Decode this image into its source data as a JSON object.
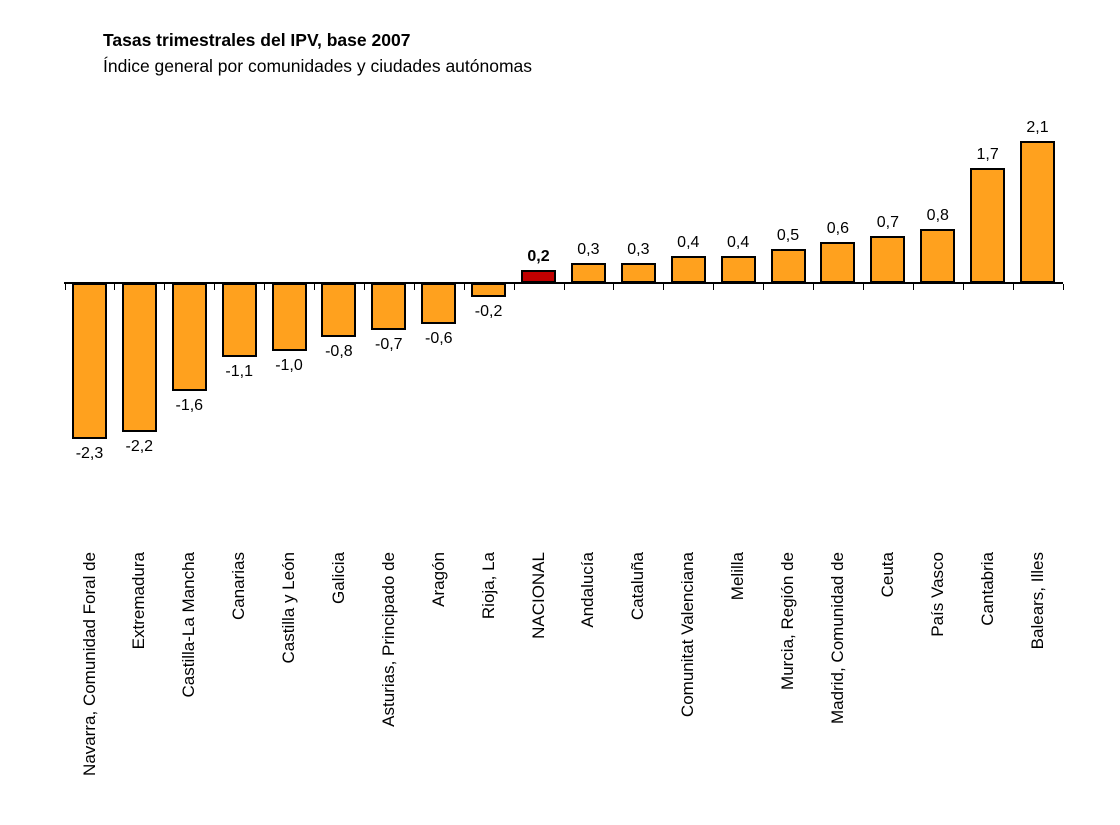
{
  "header": {
    "title": "Tasas trimestrales del IPV, base 2007",
    "subtitle": "Índice general por comunidades y ciudades autónomas"
  },
  "chart_data": {
    "type": "bar",
    "title": "Tasas trimestrales del IPV, base 2007",
    "subtitle": "Índice general por comunidades y ciudades autónomas",
    "categories": [
      "Navarra, Comunidad Foral de",
      "Extremadura",
      "Castilla-La Mancha",
      "Canarias",
      "Castilla y León",
      "Galicia",
      "Asturias, Principado de",
      "Aragón",
      "Rioja, La",
      "NACIONAL",
      "Andalucía",
      "Cataluña",
      "Comunitat Valenciana",
      "Melilla",
      "Murcia, Región de",
      "Madrid, Comunidad de",
      "Ceuta",
      "País Vasco",
      "Cantabria",
      "Balears, Illes"
    ],
    "values": [
      -2.3,
      -2.2,
      -1.6,
      -1.1,
      -1.0,
      -0.8,
      -0.7,
      -0.6,
      -0.2,
      0.2,
      0.3,
      0.3,
      0.4,
      0.4,
      0.5,
      0.6,
      0.7,
      0.8,
      1.7,
      2.1
    ],
    "labels": [
      "-2,3",
      "-2,2",
      "-1,6",
      "-1,1",
      "-1,0",
      "-0,8",
      "-0,7",
      "-0,6",
      "-0,2",
      "0,2",
      "0,3",
      "0,3",
      "0,4",
      "0,4",
      "0,5",
      "0,6",
      "0,7",
      "0,8",
      "1,7",
      "2,1"
    ],
    "highlight_index": 9,
    "highlight_category": "NACIONAL",
    "bar_color": "#FFA11E",
    "highlight_color": "#C00000",
    "bar_border_color": "#000000",
    "xlabel": "",
    "ylabel": "",
    "ylim": [
      -2.5,
      2.5
    ],
    "grid": false,
    "legend": "none",
    "decimal_separator": ","
  }
}
